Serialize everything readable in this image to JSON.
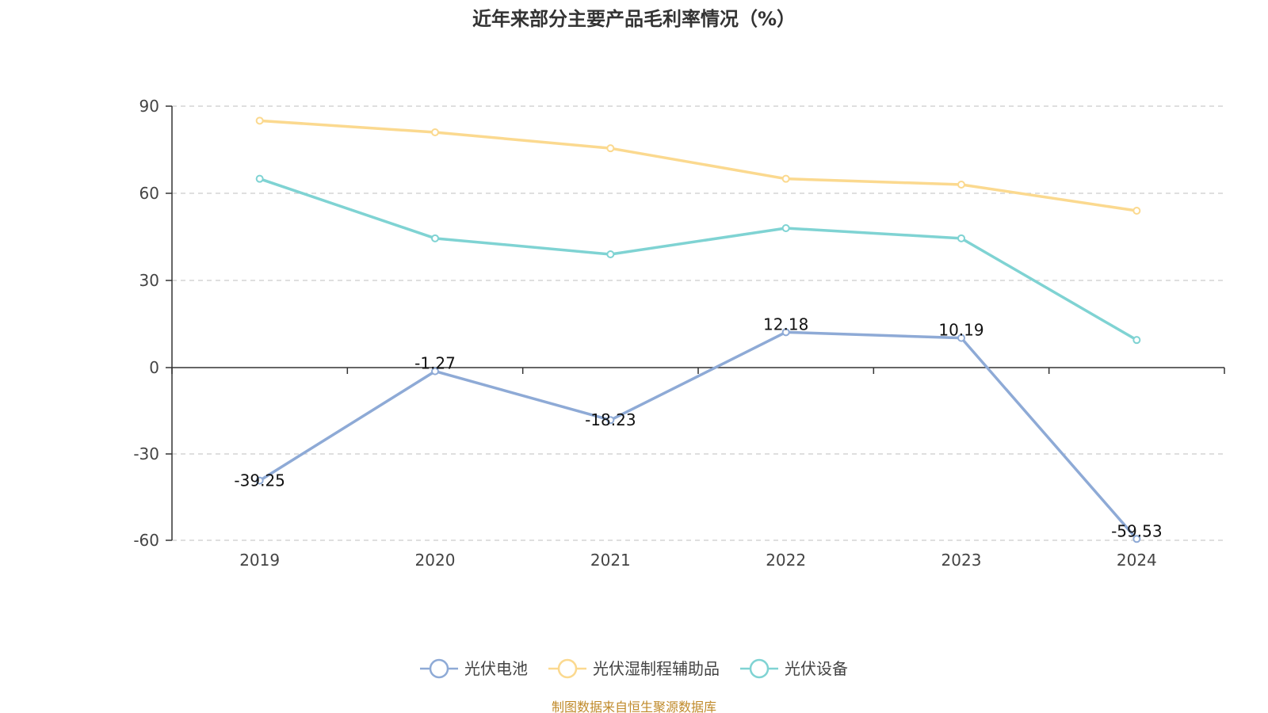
{
  "chart_data": {
    "type": "line",
    "title": "近年来部分主要产品毛利率情况（%）",
    "categories": [
      "2019",
      "2020",
      "2021",
      "2022",
      "2023",
      "2024"
    ],
    "ylim": [
      -60,
      90
    ],
    "yticks": [
      90,
      60,
      30,
      0,
      -30,
      -60
    ],
    "grid": true,
    "legend_position": "bottom",
    "series": [
      {
        "name": "光伏电池",
        "color": "#8eaad6",
        "values": [
          -39.25,
          -1.27,
          -18.23,
          12.18,
          10.19,
          -59.53
        ],
        "labels": [
          "-39.25",
          "-1.27",
          "-18.23",
          "12.18",
          "10.19",
          "-59.53"
        ],
        "label_position": [
          "below",
          "above",
          "below",
          "above",
          "above",
          "above"
        ]
      },
      {
        "name": "光伏湿制程辅助品",
        "color": "#fbd98f",
        "values": [
          85,
          81,
          75.5,
          65,
          63,
          54
        ]
      },
      {
        "name": "光伏设备",
        "color": "#7fd3d3",
        "values": [
          65,
          44.5,
          39,
          48,
          44.5,
          9.5
        ]
      }
    ]
  },
  "source": {
    "text": "制图数据来自恒生聚源数据库",
    "color": "#c08a2a"
  }
}
